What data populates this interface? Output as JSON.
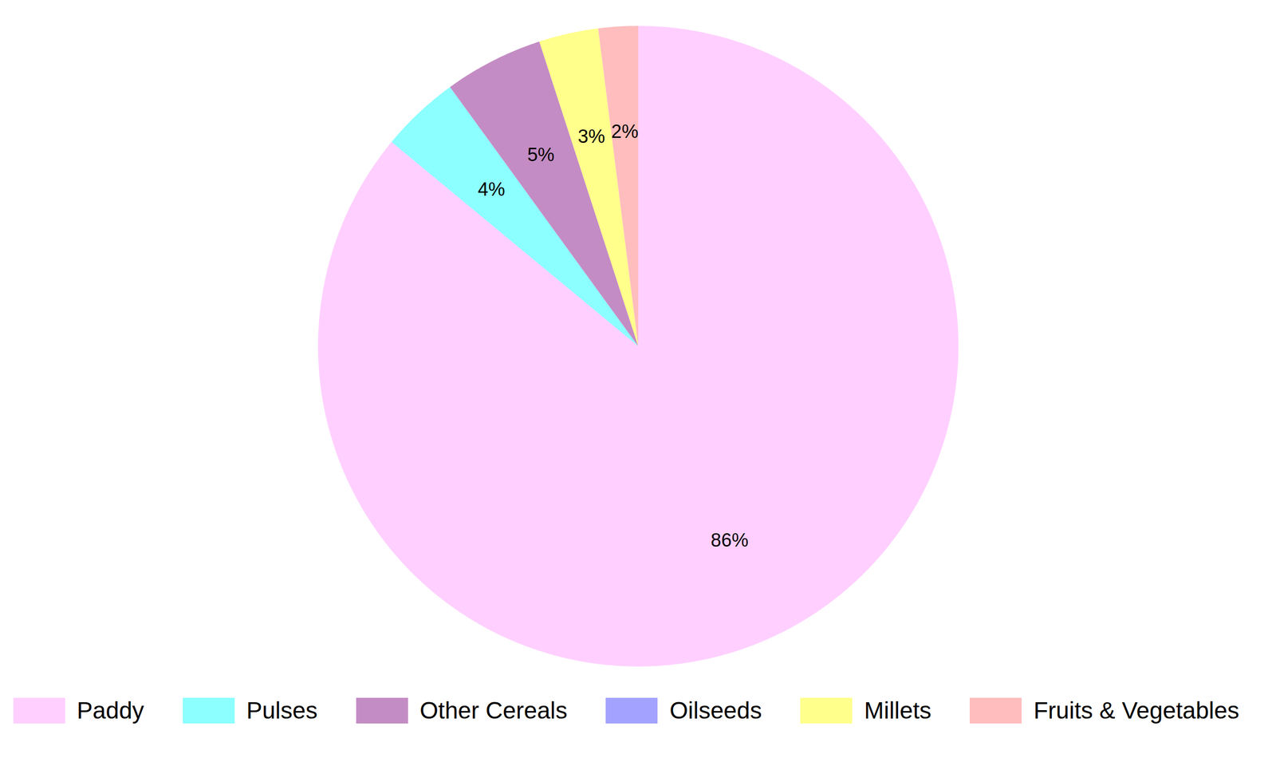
{
  "chart_data": {
    "type": "pie",
    "categories": [
      "Paddy",
      "Pulses",
      "Other Cereals",
      "Oilseeds",
      "Millets",
      "Fruits & Vegetables"
    ],
    "values": [
      86,
      4,
      5,
      0,
      3,
      2
    ],
    "value_labels": [
      "86%",
      "4%",
      "5%",
      null,
      "3%",
      "2%"
    ],
    "colors": [
      "#ffd0ff",
      "#8cffff",
      "#c48cc4",
      "#a3a3ff",
      "#ffff8c",
      "#ffbdbd"
    ],
    "data_labels": true,
    "legend": "bottom"
  }
}
